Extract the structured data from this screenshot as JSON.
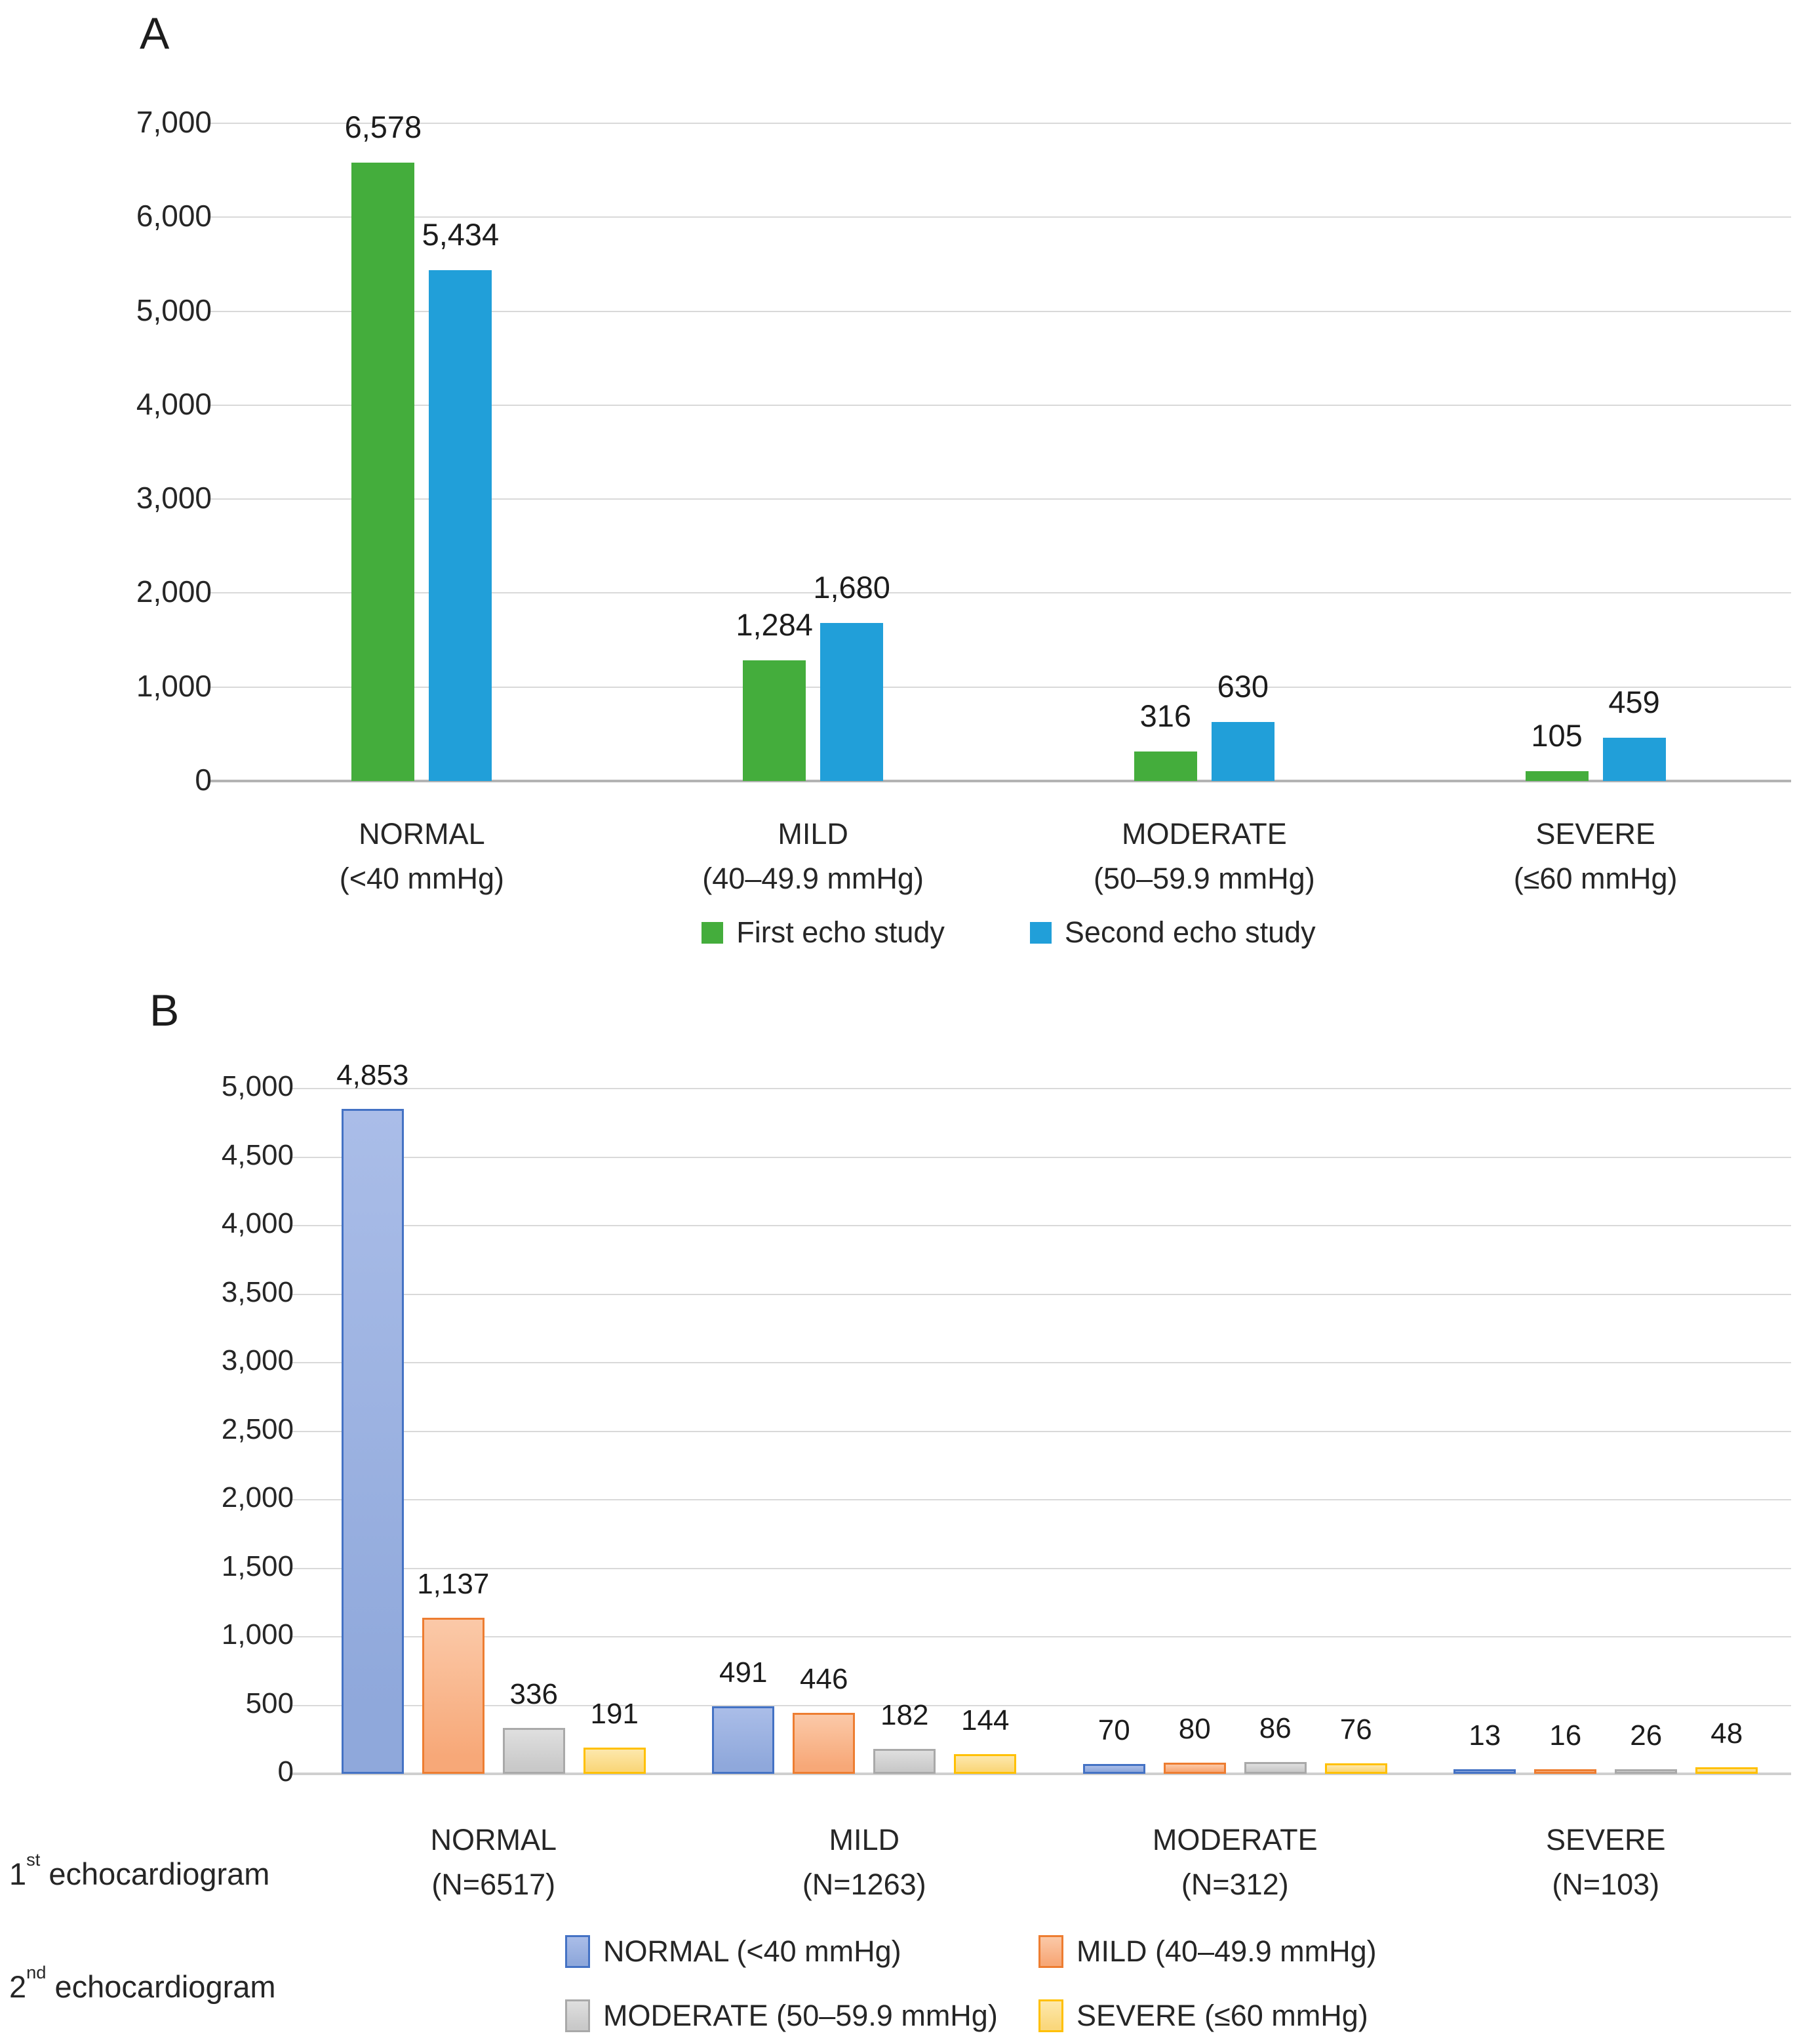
{
  "chart_data": [
    {
      "id": "A",
      "type": "bar",
      "panel_label": "A",
      "ylim": [
        0,
        7000
      ],
      "grid": true,
      "legend_position": "bottom-center",
      "y_ticks": [
        {
          "value": 7000,
          "label": "7,000"
        },
        {
          "value": 6000,
          "label": "6,000"
        },
        {
          "value": 5000,
          "label": "5,000"
        },
        {
          "value": 4000,
          "label": "4,000"
        },
        {
          "value": 3000,
          "label": "3,000"
        },
        {
          "value": 2000,
          "label": "2,000"
        },
        {
          "value": 1000,
          "label": "1,000"
        },
        {
          "value": 0,
          "label": "0"
        }
      ],
      "categories": [
        {
          "name": "NORMAL",
          "range": "(<40 mmHg)"
        },
        {
          "name": "MILD",
          "range": "(40–49.9 mmHg)"
        },
        {
          "name": "MODERATE",
          "range": "(50–59.9 mmHg)"
        },
        {
          "name": "SEVERE",
          "range": "(≤60 mmHg)"
        }
      ],
      "series": [
        {
          "name": "First echo study",
          "color": "#44ad3c",
          "values": [
            6578,
            1284,
            316,
            105
          ],
          "value_labels": [
            "6,578",
            "1,284",
            "316",
            "105"
          ]
        },
        {
          "name": "Second echo study",
          "color": "#219fd9",
          "values": [
            5434,
            1680,
            630,
            459
          ],
          "value_labels": [
            "5,434",
            "1,680",
            "630",
            "459"
          ]
        }
      ]
    },
    {
      "id": "B",
      "type": "bar",
      "panel_label": "B",
      "ylim": [
        0,
        5000
      ],
      "grid": true,
      "legend_position": "bottom-left-two-rows",
      "y_ticks": [
        {
          "value": 5000,
          "label": "5,000"
        },
        {
          "value": 4500,
          "label": "4,500"
        },
        {
          "value": 4000,
          "label": "4,000"
        },
        {
          "value": 3500,
          "label": "3,500"
        },
        {
          "value": 3000,
          "label": "3,000"
        },
        {
          "value": 2500,
          "label": "2,500"
        },
        {
          "value": 2000,
          "label": "2,000"
        },
        {
          "value": 1500,
          "label": "1,500"
        },
        {
          "value": 1000,
          "label": "1,000"
        },
        {
          "value": 500,
          "label": "500"
        },
        {
          "value": 0,
          "label": "0"
        }
      ],
      "categories": [
        {
          "name": "NORMAL",
          "range": "(N=6517)"
        },
        {
          "name": "MILD",
          "range": "(N=1263)"
        },
        {
          "name": "MODERATE",
          "range": "(N=312)"
        },
        {
          "name": "SEVERE",
          "range": "(N=103)"
        }
      ],
      "series": [
        {
          "name": "NORMAL (<40 mmHg)",
          "fill": "#8fa8db",
          "fill_light": "#aabde8",
          "border": "#4472c4",
          "values": [
            4853,
            491,
            70,
            13
          ],
          "value_labels": [
            "4,853",
            "491",
            "70",
            "13"
          ]
        },
        {
          "name": "MILD  (40–49.9 mmHg)",
          "fill": "#f7a878",
          "fill_light": "#fbc9a8",
          "border": "#ed7d31",
          "values": [
            1137,
            446,
            80,
            16
          ],
          "value_labels": [
            "1,137",
            "446",
            "80",
            "16"
          ]
        },
        {
          "name": "MODERATE (50–59.9 mmHg)",
          "fill": "#c9c9c9",
          "fill_light": "#dfdfdf",
          "border": "#a9a9a9",
          "values": [
            336,
            182,
            86,
            26
          ],
          "value_labels": [
            "336",
            "182",
            "86",
            "26"
          ]
        },
        {
          "name": "SEVERE  (≤60 mmHg)",
          "fill": "#fad77c",
          "fill_light": "#fde8ac",
          "border": "#ffc000",
          "values": [
            191,
            144,
            76,
            48
          ],
          "value_labels": [
            "191",
            "144",
            "76",
            "48"
          ]
        }
      ],
      "x_axis_caption": {
        "num": "1",
        "sup": "st",
        "text": " echocardiogram"
      },
      "legend_caption": {
        "num": "2",
        "sup": "nd",
        "text": " echocardiogram"
      }
    }
  ]
}
